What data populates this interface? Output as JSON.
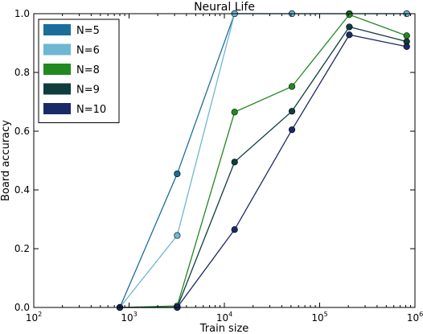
{
  "chart_data": {
    "type": "line",
    "title": "Neural Life",
    "xlabel": "Train size",
    "ylabel": "Board accuracy",
    "xscale": "log",
    "xlim": [
      100,
      1000000
    ],
    "ylim": [
      0.0,
      1.0
    ],
    "grid": false,
    "legend_position": "top-left",
    "x_tick_labels": [
      {
        "base": "10",
        "exp": "2"
      },
      {
        "base": "10",
        "exp": "3"
      },
      {
        "base": "10",
        "exp": "4"
      },
      {
        "base": "10",
        "exp": "5"
      },
      {
        "base": "10",
        "exp": "6"
      }
    ],
    "y_tick_labels": [
      "0.0",
      "0.2",
      "0.4",
      "0.6",
      "0.8",
      "1.0"
    ],
    "x": [
      800,
      3200,
      12800,
      51200,
      204800,
      819200
    ],
    "series": [
      {
        "name": "N=5",
        "color": "#1a6e99",
        "values": [
          0.0,
          0.455,
          1.0,
          1.0,
          1.0,
          1.0
        ]
      },
      {
        "name": "N=6",
        "color": "#6fb6d3",
        "values": [
          0.0,
          0.245,
          1.0,
          1.0,
          1.0,
          1.0
        ]
      },
      {
        "name": "N=8",
        "color": "#21891f",
        "values": [
          0.0,
          0.005,
          0.665,
          0.752,
          0.997,
          0.925
        ]
      },
      {
        "name": "N=9",
        "color": "#0e3d3d",
        "values": [
          0.0,
          0.0,
          0.495,
          0.668,
          0.955,
          0.905
        ]
      },
      {
        "name": "N=10",
        "color": "#1a2a66",
        "values": [
          0.0,
          0.0,
          0.265,
          0.605,
          0.928,
          0.888
        ]
      }
    ]
  }
}
